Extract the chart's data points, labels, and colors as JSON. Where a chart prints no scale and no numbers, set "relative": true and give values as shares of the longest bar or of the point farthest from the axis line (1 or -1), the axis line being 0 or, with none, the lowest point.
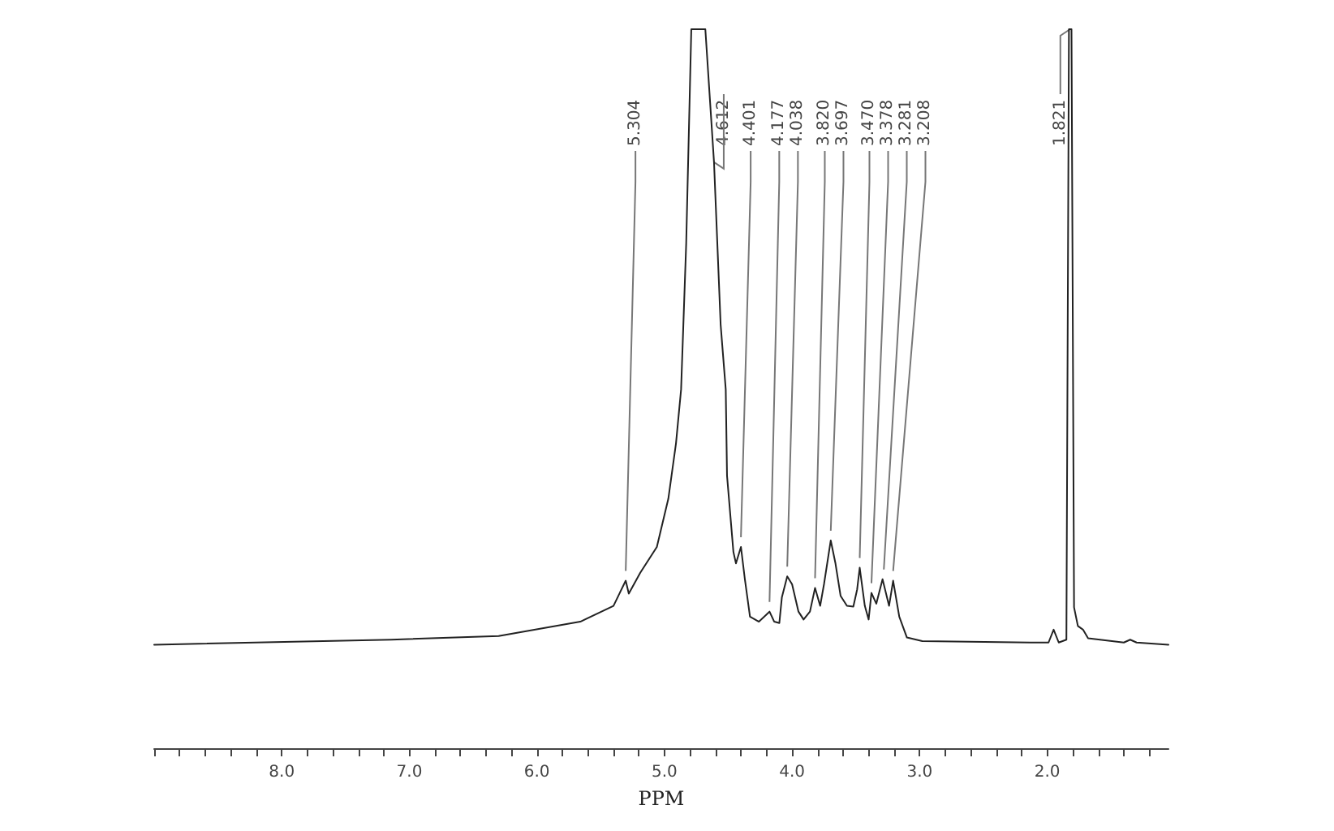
{
  "chart_data": {
    "type": "line",
    "relative": true,
    "xlabel": "PPM",
    "color": "#222222",
    "marker": "none",
    "line_style": "solid",
    "tick_labels": "x",
    "xlim": [
      9.0,
      1.05
    ],
    "xticks": [
      {
        "value": 9.0,
        "label": null
      },
      {
        "value": 8.8,
        "label": null
      },
      {
        "value": 8.6,
        "label": null
      },
      {
        "value": 8.4,
        "label": null
      },
      {
        "value": 8.2,
        "label": null
      },
      {
        "value": 8.0,
        "label": "8.0"
      },
      {
        "value": 7.8,
        "label": null
      },
      {
        "value": 7.6,
        "label": null
      },
      {
        "value": 7.4,
        "label": null
      },
      {
        "value": 7.2,
        "label": null
      },
      {
        "value": 7.0,
        "label": "7.0"
      },
      {
        "value": 6.8,
        "label": null
      },
      {
        "value": 6.6,
        "label": null
      },
      {
        "value": 6.4,
        "label": null
      },
      {
        "value": 6.2,
        "label": null
      },
      {
        "value": 6.0,
        "label": "6.0"
      },
      {
        "value": 5.8,
        "label": null
      },
      {
        "value": 5.6,
        "label": null
      },
      {
        "value": 5.4,
        "label": null
      },
      {
        "value": 5.2,
        "label": null
      },
      {
        "value": 5.0,
        "label": "5.0"
      },
      {
        "value": 4.8,
        "label": null
      },
      {
        "value": 4.6,
        "label": null
      },
      {
        "value": 4.4,
        "label": null
      },
      {
        "value": 4.2,
        "label": null
      },
      {
        "value": 4.0,
        "label": "4.0"
      },
      {
        "value": 3.8,
        "label": null
      },
      {
        "value": 3.6,
        "label": null
      },
      {
        "value": 3.4,
        "label": null
      },
      {
        "value": 3.2,
        "label": null
      },
      {
        "value": 3.0,
        "label": "3.0"
      },
      {
        "value": 2.8,
        "label": null
      },
      {
        "value": 2.6,
        "label": null
      },
      {
        "value": 2.4,
        "label": null
      },
      {
        "value": 2.2,
        "label": null
      },
      {
        "value": 2.0,
        "label": "2.0"
      },
      {
        "value": 1.8,
        "label": null
      },
      {
        "value": 1.6,
        "label": null
      },
      {
        "value": 1.4,
        "label": null
      },
      {
        "value": 1.2,
        "label": null
      }
    ],
    "x": [
      9.0,
      7.14,
      6.3,
      5.66,
      5.4,
      5.304,
      5.28,
      5.19,
      5.06,
      4.97,
      4.91,
      4.87,
      4.83,
      4.79,
      4.68,
      4.612,
      4.56,
      4.52,
      4.51,
      4.46,
      4.44,
      4.401,
      4.37,
      4.33,
      4.26,
      4.177,
      4.14,
      4.1,
      4.08,
      4.038,
      4.0,
      3.95,
      3.91,
      3.86,
      3.82,
      3.78,
      3.75,
      3.697,
      3.66,
      3.62,
      3.57,
      3.52,
      3.49,
      3.47,
      3.43,
      3.4,
      3.378,
      3.34,
      3.291,
      3.24,
      3.208,
      3.16,
      3.1,
      2.98,
      2.13,
      1.99,
      1.95,
      1.91,
      1.85,
      1.83,
      1.81,
      1.79,
      1.76,
      1.72,
      1.68,
      1.4,
      1.35,
      1.3,
      1.05
    ],
    "values": [
      0.144,
      0.151,
      0.156,
      0.176,
      0.198,
      0.233,
      0.215,
      0.244,
      0.28,
      0.347,
      0.424,
      0.499,
      0.702,
      1.0,
      1.0,
      0.815,
      0.589,
      0.499,
      0.379,
      0.273,
      0.257,
      0.28,
      0.235,
      0.183,
      0.176,
      0.19,
      0.176,
      0.174,
      0.21,
      0.239,
      0.228,
      0.19,
      0.179,
      0.19,
      0.223,
      0.198,
      0.228,
      0.289,
      0.257,
      0.212,
      0.198,
      0.197,
      0.221,
      0.251,
      0.198,
      0.179,
      0.216,
      0.201,
      0.235,
      0.198,
      0.233,
      0.183,
      0.154,
      0.149,
      0.147,
      0.147,
      0.165,
      0.147,
      0.151,
      1.0,
      1.0,
      0.196,
      0.17,
      0.165,
      0.153,
      0.147,
      0.151,
      0.147,
      0.144
    ],
    "annotations": [
      {
        "text": "5.304",
        "x": 5.304,
        "y": 0.233
      },
      {
        "text": "4.612",
        "x": 4.612,
        "y": 0.815
      },
      {
        "text": "4.401",
        "x": 4.401,
        "y": 0.28
      },
      {
        "text": "4.177",
        "x": 4.177,
        "y": 0.19
      },
      {
        "text": "4.038",
        "x": 4.038,
        "y": 0.239
      },
      {
        "text": "3.820",
        "x": 3.82,
        "y": 0.223
      },
      {
        "text": "3.697",
        "x": 3.697,
        "y": 0.289
      },
      {
        "text": "3.470",
        "x": 3.47,
        "y": 0.251
      },
      {
        "text": "3.378",
        "x": 3.378,
        "y": 0.216
      },
      {
        "text": "3.281",
        "x": 3.281,
        "y": 0.235
      },
      {
        "text": "3.208",
        "x": 3.208,
        "y": 0.233
      },
      {
        "text": "1.821",
        "x": 1.821,
        "y": 1.0
      }
    ]
  }
}
